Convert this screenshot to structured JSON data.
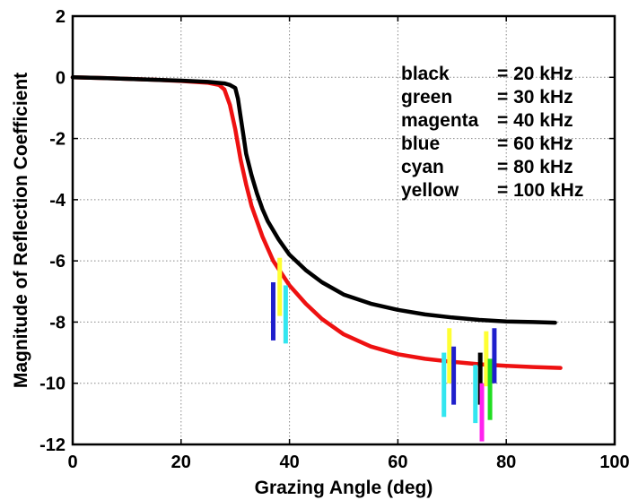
{
  "chart_data": {
    "type": "line",
    "xlabel": "Grazing Angle (deg)",
    "ylabel": "Magnitude of Reflection Coefficient",
    "xlim": [
      0,
      100
    ],
    "ylim": [
      -12,
      2
    ],
    "xticks": [
      0,
      20,
      40,
      60,
      80,
      100
    ],
    "yticks": [
      -12,
      -10,
      -8,
      -6,
      -4,
      -2,
      0,
      2
    ],
    "grid": true,
    "legend_placement": "top-right",
    "legend": [
      {
        "name": "black",
        "value": "= 20 kHz"
      },
      {
        "name": "green",
        "value": "= 30 kHz"
      },
      {
        "name": "magenta",
        "value": "= 40 kHz"
      },
      {
        "name": "blue",
        "value": "= 60 kHz"
      },
      {
        "name": "cyan",
        "value": "= 80 kHz"
      },
      {
        "name": "yellow",
        "value": "= 100 kHz"
      }
    ],
    "series": [
      {
        "color": "#000000",
        "x": [
          0,
          5,
          10,
          15,
          20,
          25,
          28,
          29,
          30,
          30.5,
          31,
          31.5,
          32,
          33,
          34,
          35,
          36,
          38,
          40,
          43,
          46,
          50,
          55,
          60,
          65,
          70,
          75,
          80,
          85,
          89
        ],
        "y": [
          0,
          -0.02,
          -0.05,
          -0.08,
          -0.11,
          -0.15,
          -0.2,
          -0.25,
          -0.35,
          -0.7,
          -1.3,
          -1.9,
          -2.5,
          -3.2,
          -3.8,
          -4.3,
          -4.7,
          -5.3,
          -5.8,
          -6.3,
          -6.7,
          -7.1,
          -7.4,
          -7.6,
          -7.75,
          -7.85,
          -7.93,
          -7.98,
          -8.0,
          -8.02
        ]
      },
      {
        "color": "#ee1111",
        "x": [
          0,
          5,
          10,
          15,
          20,
          25,
          27,
          28,
          29,
          30,
          31,
          32,
          33,
          35,
          37,
          40,
          43,
          46,
          50,
          55,
          60,
          65,
          70,
          75,
          80,
          85,
          90
        ],
        "y": [
          0,
          -0.02,
          -0.05,
          -0.08,
          -0.12,
          -0.18,
          -0.25,
          -0.4,
          -0.9,
          -1.7,
          -2.7,
          -3.5,
          -4.2,
          -5.2,
          -6.0,
          -6.8,
          -7.4,
          -7.9,
          -8.4,
          -8.8,
          -9.05,
          -9.2,
          -9.3,
          -9.38,
          -9.43,
          -9.47,
          -9.5
        ]
      }
    ],
    "measurement_bars": [
      {
        "color": "#1f1fcc",
        "x": 37.0,
        "y_low": -8.6,
        "y_high": -6.7
      },
      {
        "color": "#ffff33",
        "x": 38.2,
        "y_low": -7.8,
        "y_high": -5.9
      },
      {
        "color": "#33e6f0",
        "x": 39.3,
        "y_low": -8.7,
        "y_high": -6.8
      },
      {
        "color": "#33e6f0",
        "x": 68.5,
        "y_low": -11.1,
        "y_high": -9.0
      },
      {
        "color": "#ffff33",
        "x": 69.5,
        "y_low": -10.0,
        "y_high": -8.2
      },
      {
        "color": "#1f1fcc",
        "x": 70.3,
        "y_low": -10.7,
        "y_high": -8.8
      },
      {
        "color": "#33e6f0",
        "x": 74.3,
        "y_low": -11.3,
        "y_high": -9.4
      },
      {
        "color": "#000000",
        "x": 75.2,
        "y_low": -10.7,
        "y_high": -9.0
      },
      {
        "color": "#ff22ee",
        "x": 75.5,
        "y_low": -11.9,
        "y_high": -10.0
      },
      {
        "color": "#ffff33",
        "x": 76.3,
        "y_low": -10.1,
        "y_high": -8.3
      },
      {
        "color": "#22dd22",
        "x": 77.0,
        "y_low": -11.2,
        "y_high": -9.2
      },
      {
        "color": "#1f1fcc",
        "x": 77.8,
        "y_low": -10.0,
        "y_high": -8.2
      }
    ]
  }
}
